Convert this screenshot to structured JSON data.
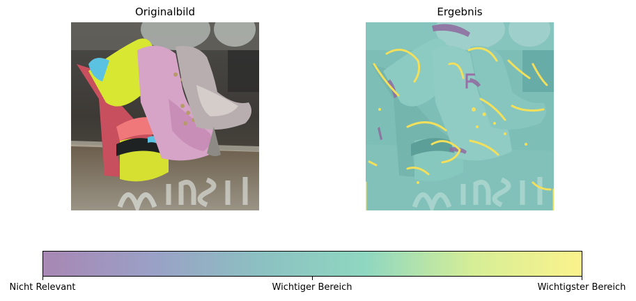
{
  "panels": {
    "left_title": "Originalbild",
    "right_title": "Ergebnis"
  },
  "colorbar": {
    "colors": [
      "#a887b4",
      "#9aa0c6",
      "#8cc0c2",
      "#8fd7c0",
      "#d6ee96",
      "#fbf28c"
    ],
    "ticks": [
      {
        "label": "Nicht Relevant",
        "fraction": 0
      },
      {
        "label": "Wichtiger Bereich",
        "fraction": 0.5
      },
      {
        "label": "Wichtigster Bereich",
        "fraction": 1
      }
    ]
  }
}
